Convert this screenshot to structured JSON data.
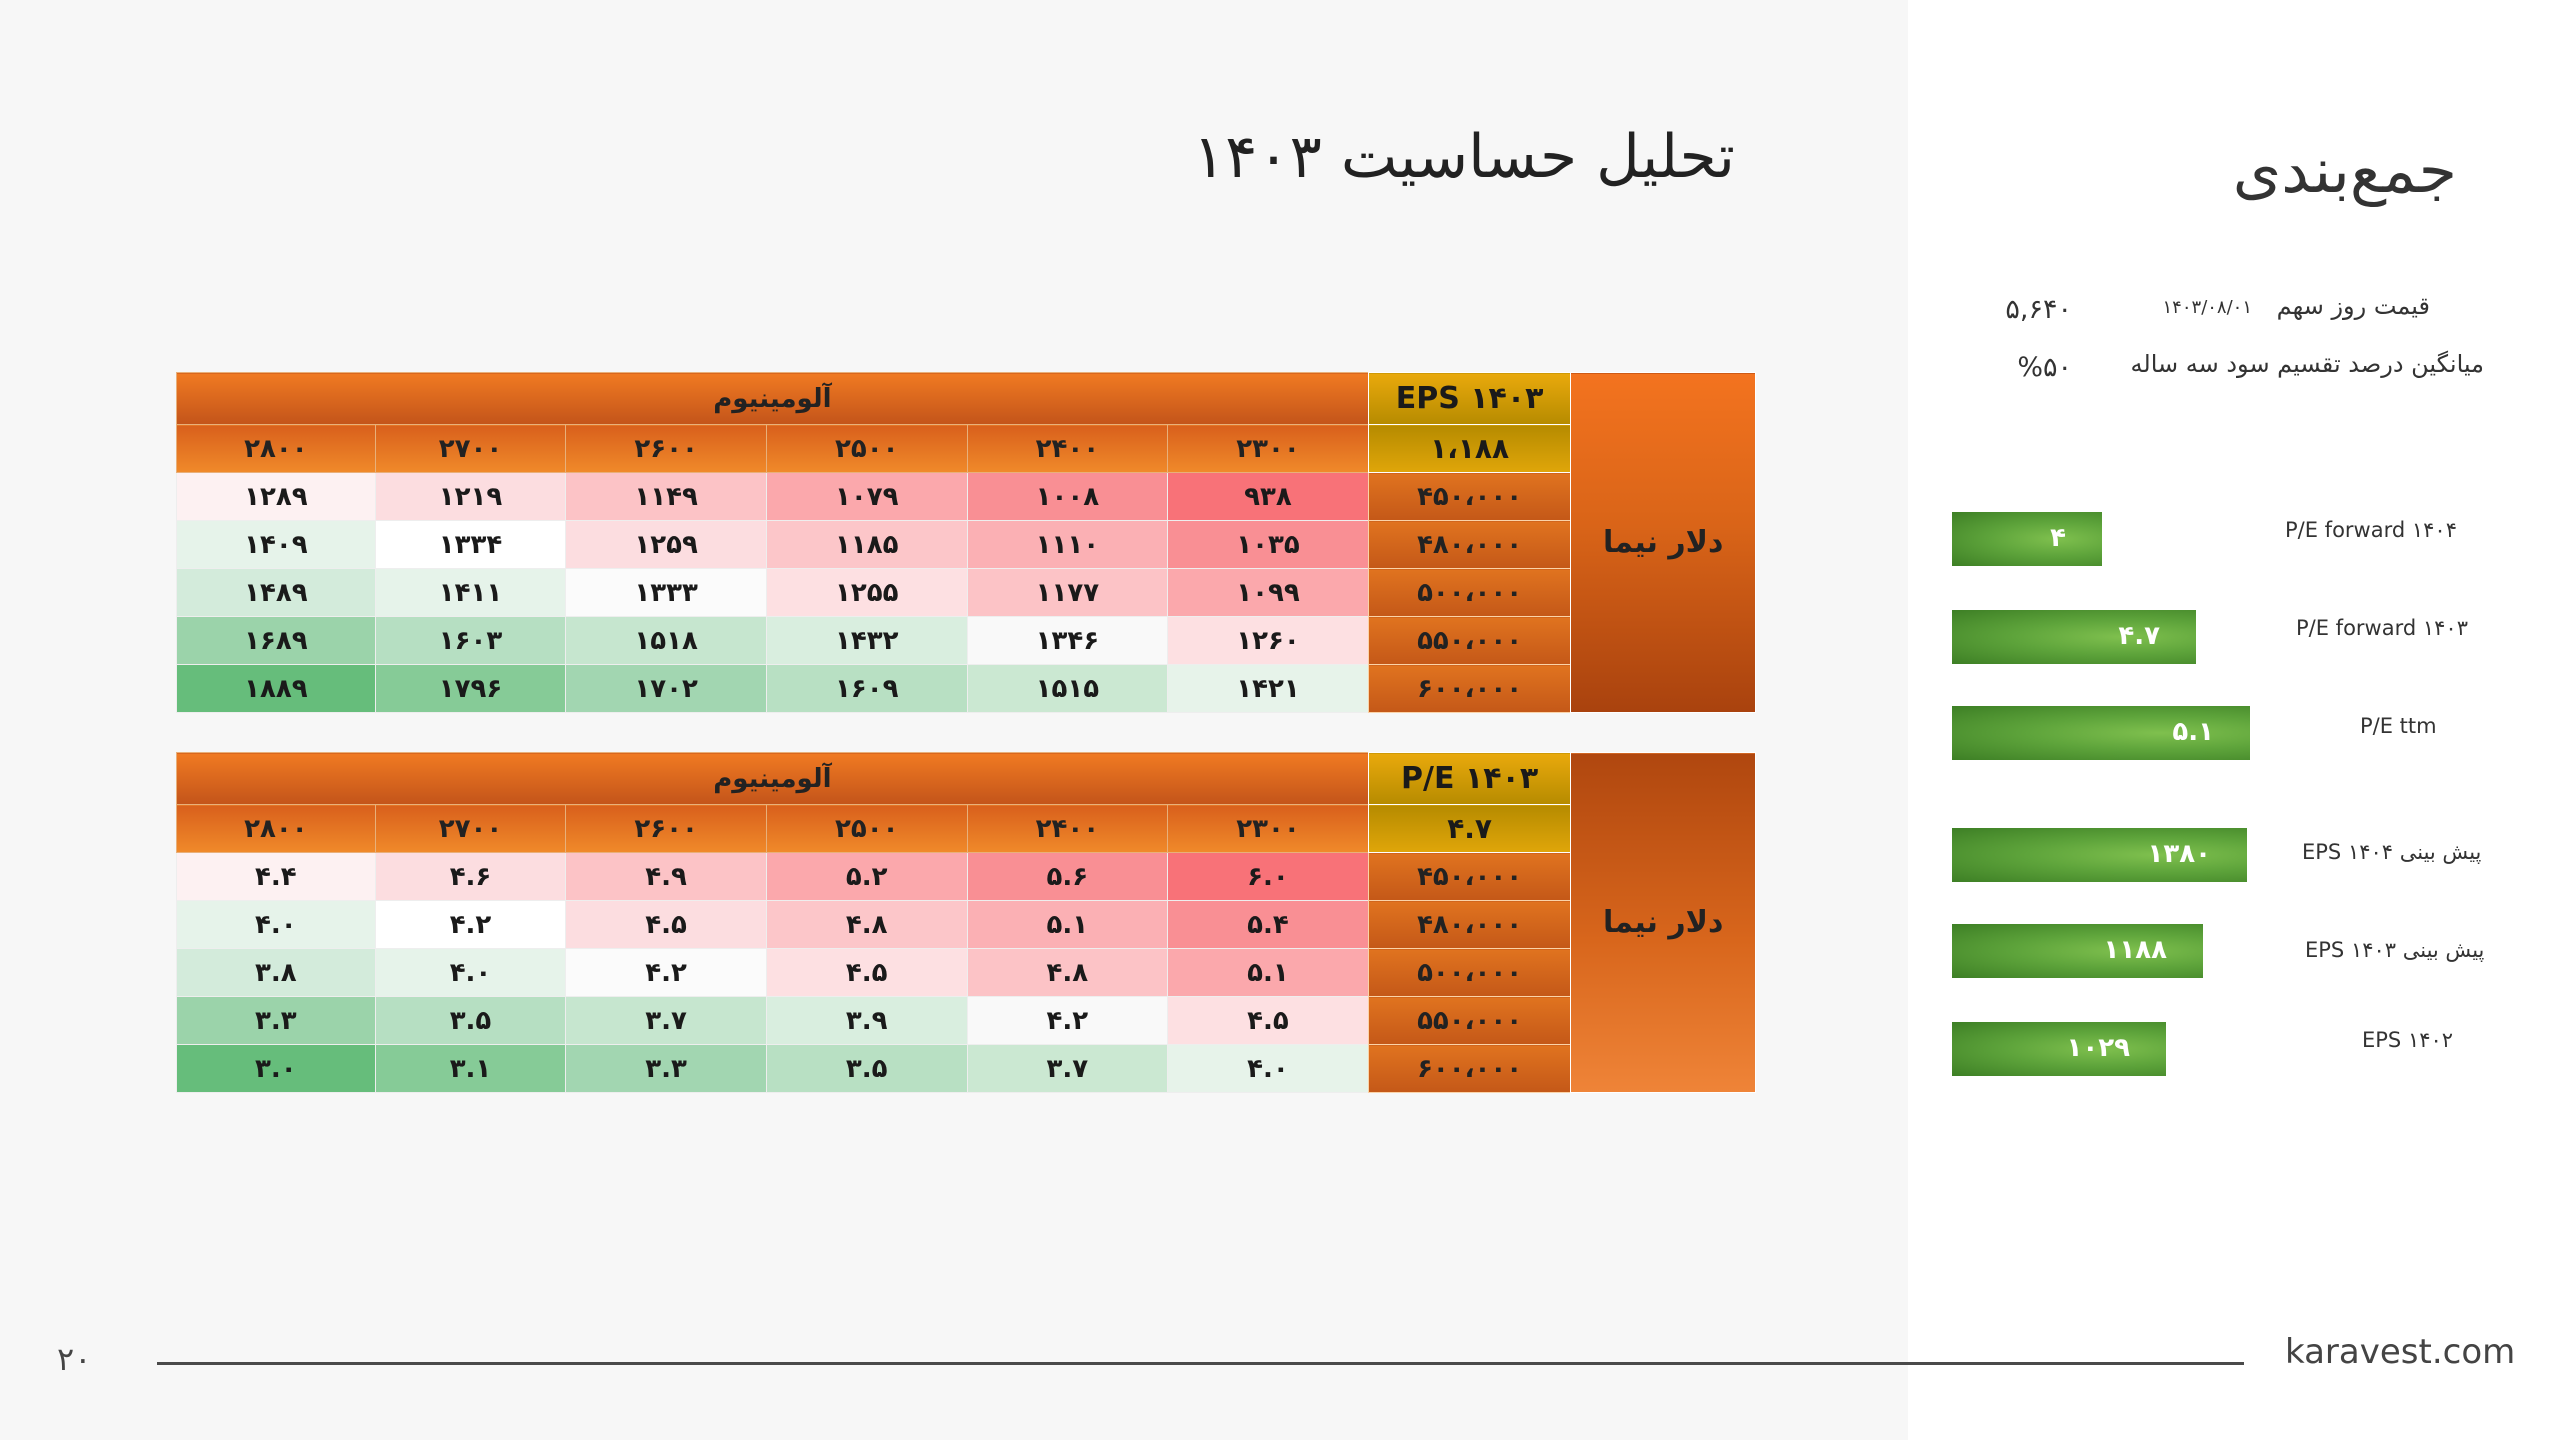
{
  "main_title": "تحلیل حساسیت ۱۴۰۳",
  "side_title": "جمع‌بندی",
  "info": {
    "price_label": "قیمت روز سهم",
    "price_date": "۱۴۰۳/۰۸/۰۱",
    "price_value": "۵,۶۴۰",
    "dividend_label": "میانگین درصد تقسیم سود سه ساله",
    "dividend_value": "%۵۰"
  },
  "table1": {
    "group_header": "آلومینیوم",
    "corner_title": "EPS ۱۴۰۳",
    "corner_value": "۱،۱۸۸",
    "side_label": "دلار نیما",
    "columns": [
      "۲۳۰۰",
      "۲۴۰۰",
      "۲۵۰۰",
      "۲۶۰۰",
      "۲۷۰۰",
      "۲۸۰۰"
    ],
    "rows": [
      {
        "label": "۴۵۰،۰۰۰",
        "cells": [
          "۹۳۸",
          "۱۰۰۸",
          "۱۰۷۹",
          "۱۱۴۹",
          "۱۲۱۹",
          "۱۲۸۹"
        ]
      },
      {
        "label": "۴۸۰،۰۰۰",
        "cells": [
          "۱۰۳۵",
          "۱۱۱۰",
          "۱۱۸۵",
          "۱۲۵۹",
          "۱۳۳۴",
          "۱۴۰۹"
        ]
      },
      {
        "label": "۵۰۰،۰۰۰",
        "cells": [
          "۱۰۹۹",
          "۱۱۷۷",
          "۱۲۵۵",
          "۱۳۳۳",
          "۱۴۱۱",
          "۱۴۸۹"
        ]
      },
      {
        "label": "۵۵۰،۰۰۰",
        "cells": [
          "۱۲۶۰",
          "۱۳۴۶",
          "۱۴۳۲",
          "۱۵۱۸",
          "۱۶۰۳",
          "۱۶۸۹"
        ]
      },
      {
        "label": "۶۰۰،۰۰۰",
        "cells": [
          "۱۴۲۱",
          "۱۵۱۵",
          "۱۶۰۹",
          "۱۷۰۲",
          "۱۷۹۶",
          "۱۸۸۹"
        ]
      }
    ],
    "cell_colors": [
      [
        "#f87278",
        "#f98f94",
        "#fba8ac",
        "#fcc3c6",
        "#fcdde0",
        "#fdf1f2"
      ],
      [
        "#f98f94",
        "#fbb0b4",
        "#fcc6c9",
        "#fcdde0",
        "#ffffff",
        "#e6f3ea"
      ],
      [
        "#fba8ac",
        "#fcc3c6",
        "#fde0e2",
        "#fbfbfb",
        "#e6f3ea",
        "#d3ebdb"
      ],
      [
        "#fde0e2",
        "#f9f9f9",
        "#d9eedf",
        "#c6e6cf",
        "#b6dfc2",
        "#9bd3aa"
      ],
      [
        "#e7f3ea",
        "#cbe8d2",
        "#b8e0c3",
        "#a2d6b1",
        "#86cb97",
        "#66bd7b"
      ]
    ]
  },
  "table2": {
    "group_header": "آلومینیوم",
    "corner_title": "P/E ۱۴۰۳",
    "corner_value": "۴.۷",
    "side_label": "دلار نیما",
    "columns": [
      "۲۳۰۰",
      "۲۴۰۰",
      "۲۵۰۰",
      "۲۶۰۰",
      "۲۷۰۰",
      "۲۸۰۰"
    ],
    "rows": [
      {
        "label": "۴۵۰،۰۰۰",
        "cells": [
          "۶.۰",
          "۵.۶",
          "۵.۲",
          "۴.۹",
          "۴.۶",
          "۴.۴"
        ]
      },
      {
        "label": "۴۸۰،۰۰۰",
        "cells": [
          "۵.۴",
          "۵.۱",
          "۴.۸",
          "۴.۵",
          "۴.۲",
          "۴.۰"
        ]
      },
      {
        "label": "۵۰۰،۰۰۰",
        "cells": [
          "۵.۱",
          "۴.۸",
          "۴.۵",
          "۴.۲",
          "۴.۰",
          "۳.۸"
        ]
      },
      {
        "label": "۵۵۰،۰۰۰",
        "cells": [
          "۴.۵",
          "۴.۲",
          "۳.۹",
          "۳.۷",
          "۳.۵",
          "۳.۳"
        ]
      },
      {
        "label": "۶۰۰،۰۰۰",
        "cells": [
          "۴.۰",
          "۳.۷",
          "۳.۵",
          "۳.۳",
          "۳.۱",
          "۳.۰"
        ]
      }
    ],
    "cell_colors": [
      [
        "#f87278",
        "#f98f94",
        "#fba8ac",
        "#fcc3c6",
        "#fcdde0",
        "#fdf1f2"
      ],
      [
        "#f98f94",
        "#fbb0b4",
        "#fcc6c9",
        "#fcdde0",
        "#ffffff",
        "#e6f3ea"
      ],
      [
        "#fba8ac",
        "#fcc3c6",
        "#fde0e2",
        "#fbfbfb",
        "#e6f3ea",
        "#d3ebdb"
      ],
      [
        "#fde0e2",
        "#f9f9f9",
        "#d9eedf",
        "#c6e6cf",
        "#b6dfc2",
        "#9bd3aa"
      ],
      [
        "#e7f3ea",
        "#cbe8d2",
        "#b8e0c3",
        "#a2d6b1",
        "#86cb97",
        "#66bd7b"
      ]
    ]
  },
  "bars": [
    {
      "label": "P/E forward ۱۴۰۴",
      "value_text": "۴",
      "value": 4.0,
      "color": "#5ea43b"
    },
    {
      "label": "P/E forward ۱۴۰۳",
      "value_text": "۴.۷",
      "value": 4.7,
      "color": "#5ea43b"
    },
    {
      "label": "P/E ttm",
      "value_text": "۵.۱",
      "value": 5.1,
      "color": "#5ea43b"
    },
    {
      "label": "پیش بینی EPS ۱۴۰۴",
      "value_text": "۱۳۸۰",
      "value": 1380,
      "color": "#5ea43b"
    },
    {
      "label": "پیش بینی EPS ۱۴۰۳",
      "value_text": "۱۱۸۸",
      "value": 1188,
      "color": "#5ea43b"
    },
    {
      "label": "EPS ۱۴۰۲",
      "value_text": "۱۰۲۹",
      "value": 1029,
      "color": "#5ea43b"
    }
  ],
  "footer": {
    "page_number": "۲۰",
    "site": "karavest.com"
  }
}
